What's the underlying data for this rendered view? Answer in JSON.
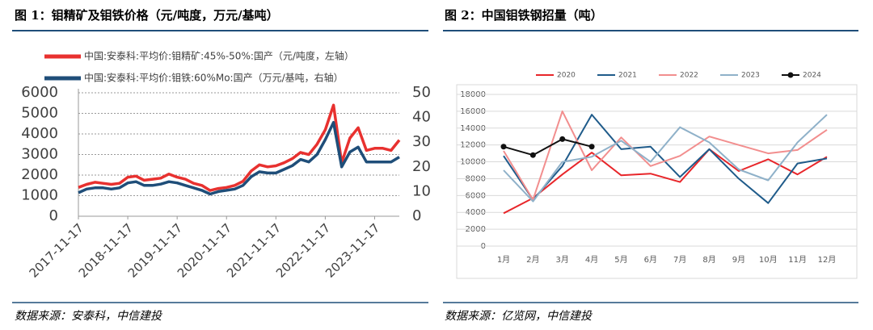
{
  "chart_data": [
    {
      "type": "line",
      "title": "图 1：钼精矿及钼铁价格（元/吨度，万元/基吨）",
      "source": "数据来源：安泰科，中信建投",
      "categories": [
        "2017-11-17",
        null,
        null,
        null,
        null,
        null,
        "2018-11-17",
        null,
        null,
        null,
        null,
        null,
        "2019-11-17",
        null,
        null,
        null,
        null,
        null,
        "2020-11-17",
        null,
        null,
        null,
        null,
        null,
        "2021-11-17",
        null,
        null,
        null,
        null,
        null,
        "2022-11-17",
        null,
        null,
        null,
        null,
        null,
        "2023-11-17",
        null,
        null,
        null
      ],
      "ylim": [
        0,
        6000
      ],
      "yticks": [
        0,
        1000,
        2000,
        3000,
        4000,
        5000,
        6000
      ],
      "y2lim": [
        0,
        50
      ],
      "y2ticks": [
        0,
        10,
        20,
        30,
        40,
        50
      ],
      "grid": true,
      "series": [
        {
          "name": "中国:安泰科:平均价:钼精矿:45%-50%:国产（元/吨度，左轴）",
          "color": "#e8312f",
          "values": [
            1400,
            1550,
            1650,
            1600,
            1550,
            1600,
            1900,
            1950,
            1750,
            1800,
            1850,
            2050,
            1900,
            1800,
            1600,
            1500,
            1250,
            1350,
            1400,
            1500,
            1700,
            2200,
            2500,
            2400,
            2450,
            2600,
            2800,
            3100,
            3000,
            3500,
            4200,
            5400,
            2600,
            3800,
            4300,
            3200,
            3300,
            3300,
            3200,
            3700
          ]
        },
        {
          "name": "中国:安泰科:平均价:钼铁:60%Mo:国产（万元/基吨，右轴）",
          "color": "#1f4e79",
          "axis": "y2",
          "values": [
            9.5,
            11,
            11.5,
            11.5,
            11,
            11.5,
            13.5,
            14,
            12.5,
            12.5,
            13,
            14,
            13.5,
            12.5,
            11.5,
            10.5,
            9,
            10,
            10.5,
            11,
            12.5,
            16,
            18,
            17.5,
            17.5,
            19,
            20.5,
            23,
            22,
            25,
            31,
            38,
            20,
            26,
            28,
            22,
            22,
            22,
            22,
            24
          ]
        }
      ]
    },
    {
      "type": "line",
      "title": "图 2：中国钼铁钢招量（吨）",
      "source": "数据来源：亿览网，中信建投",
      "categories": [
        "1月",
        "2月",
        "3月",
        "4月",
        "5月",
        "6月",
        "7月",
        "8月",
        "9月",
        "10月",
        "11月",
        "12月"
      ],
      "ylim": [
        0,
        18000
      ],
      "yticks": [
        0,
        2000,
        4000,
        6000,
        8000,
        10000,
        12000,
        14000,
        16000,
        18000
      ],
      "grid": true,
      "legend": "top",
      "series": [
        {
          "name": "2020",
          "color": "#e8262a",
          "values": [
            3900,
            5700,
            8500,
            11100,
            8400,
            8600,
            7600,
            11500,
            8900,
            10300,
            8500,
            10600
          ]
        },
        {
          "name": "2021",
          "color": "#1f5b8a",
          "values": [
            10700,
            5500,
            9500,
            15600,
            11500,
            11800,
            8200,
            11500,
            8000,
            5100,
            9800,
            10400
          ]
        },
        {
          "name": "2022",
          "color": "#f28e8e",
          "values": [
            11300,
            5500,
            16000,
            9000,
            12900,
            9500,
            10700,
            13000,
            12000,
            11000,
            11400,
            13800
          ]
        },
        {
          "name": "2023",
          "color": "#8fb1c9",
          "values": [
            9000,
            5300,
            10000,
            10600,
            12500,
            10000,
            14100,
            12300,
            9100,
            7800,
            12300,
            15600
          ]
        },
        {
          "name": "2024",
          "color": "#111111",
          "marker": true,
          "values": [
            11800,
            10800,
            12700,
            11800,
            null,
            null,
            null,
            null,
            null,
            null,
            null,
            null
          ]
        }
      ]
    }
  ]
}
